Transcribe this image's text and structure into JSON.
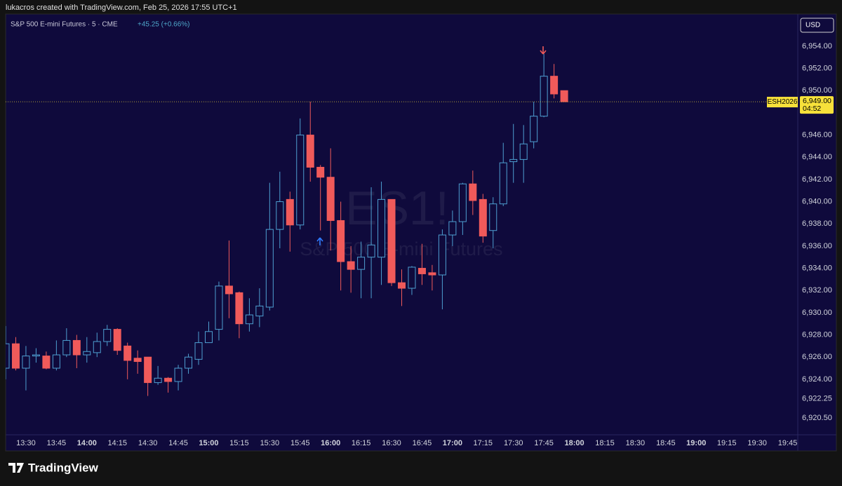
{
  "header": "lukacros created with TradingView.com, Feb 25, 2026 17:55 UTC+1",
  "footer": {
    "brand": "TradingView"
  },
  "chart_data": {
    "type": "candlestick",
    "legend": {
      "symbol": "S&P 500 E-mini Futures · 5 · CME",
      "change": "+45.25 (+0.66%)"
    },
    "watermark": {
      "ticker": "ES1!",
      "name": "S&P 500 E-mini Futures"
    },
    "currency": "USD",
    "x": [
      "13:20",
      "13:25",
      "13:30",
      "13:35",
      "13:40",
      "13:45",
      "13:50",
      "13:55",
      "14:00",
      "14:05",
      "14:10",
      "14:15",
      "14:20",
      "14:25",
      "14:30",
      "14:35",
      "14:40",
      "14:45",
      "14:50",
      "14:55",
      "15:00",
      "15:05",
      "15:10",
      "15:15",
      "15:20",
      "15:25",
      "15:30",
      "15:35",
      "15:40",
      "15:45",
      "15:50",
      "15:55",
      "16:00",
      "16:05",
      "16:10",
      "16:15",
      "16:20",
      "16:25",
      "16:30",
      "16:35",
      "16:40",
      "16:45",
      "16:50",
      "16:55",
      "17:00",
      "17:05",
      "17:10",
      "17:15",
      "17:20",
      "17:25",
      "17:30",
      "17:35",
      "17:40",
      "17:45",
      "17:50",
      "17:55"
    ],
    "open": [
      6925.0,
      6927.2,
      6925.0,
      6926.1,
      6926.1,
      6925.0,
      6926.2,
      6927.5,
      6926.2,
      6926.4,
      6927.4,
      6928.5,
      6927.0,
      6925.9,
      6926.0,
      6923.7,
      6924.1,
      6923.8,
      6925.0,
      6925.8,
      6927.3,
      6928.5,
      6932.4,
      6931.8,
      6929.0,
      6929.7,
      6930.5,
      6937.5,
      6940.2,
      6937.9,
      6946.0,
      6943.1,
      6942.2,
      6938.3,
      6934.6,
      6933.9,
      6935.0,
      6935.0,
      6940.2,
      6932.7,
      6932.2,
      6934.0,
      6933.6,
      6933.4,
      6937.0,
      6938.2,
      6941.6,
      6940.2,
      6937.4,
      6939.8,
      6943.6,
      6943.8,
      6945.4,
      6947.7,
      6951.3,
      6950.0
    ],
    "high": [
      6928.8,
      6927.8,
      6927.0,
      6926.8,
      6926.5,
      6927.5,
      6928.6,
      6928.0,
      6927.8,
      6928.2,
      6928.9,
      6928.6,
      6927.3,
      6926.6,
      6926.0,
      6925.2,
      6924.2,
      6925.3,
      6926.3,
      6928.3,
      6929.2,
      6932.8,
      6936.5,
      6931.9,
      6931.3,
      6932.2,
      6941.7,
      6942.7,
      6940.9,
      6947.5,
      6949.0,
      6943.3,
      6944.8,
      6940.0,
      6936.0,
      6936.4,
      6941.3,
      6941.8,
      6940.2,
      6933.9,
      6934.2,
      6936.2,
      6934.3,
      6937.5,
      6939.2,
      6941.7,
      6942.8,
      6940.7,
      6940.4,
      6945.3,
      6947.0,
      6946.9,
      6949.0,
      6953.3,
      6952.4,
      6950.0
    ],
    "low": [
      6924.0,
      6924.8,
      6923.0,
      6925.5,
      6924.9,
      6924.8,
      6926.0,
      6925.0,
      6925.5,
      6926.0,
      6927.0,
      6926.2,
      6924.0,
      6924.5,
      6922.5,
      6923.5,
      6922.8,
      6923.0,
      6924.5,
      6925.3,
      6927.3,
      6927.5,
      6929.5,
      6927.7,
      6928.3,
      6928.7,
      6930.2,
      6935.8,
      6935.5,
      6937.5,
      6941.8,
      6937.4,
      6935.6,
      6932.0,
      6931.8,
      6931.3,
      6931.3,
      6932.5,
      6932.4,
      6930.6,
      6931.6,
      6932.5,
      6932.0,
      6930.3,
      6936.0,
      6937.0,
      6938.8,
      6936.3,
      6935.8,
      6939.6,
      6941.7,
      6941.7,
      6944.8,
      6947.6,
      6949.3,
      6949.0
    ],
    "close": [
      6927.2,
      6925.0,
      6926.1,
      6926.2,
      6925.0,
      6926.2,
      6927.5,
      6926.2,
      6926.5,
      6927.4,
      6928.5,
      6926.6,
      6925.7,
      6925.6,
      6923.7,
      6924.1,
      6923.8,
      6925.0,
      6926.0,
      6927.3,
      6928.3,
      6932.4,
      6931.7,
      6929.0,
      6929.8,
      6930.6,
      6937.5,
      6940.0,
      6937.9,
      6946.0,
      6943.1,
      6942.2,
      6938.3,
      6934.6,
      6933.9,
      6935.0,
      6936.1,
      6940.2,
      6932.7,
      6932.2,
      6934.1,
      6933.5,
      6933.4,
      6937.0,
      6938.2,
      6941.6,
      6940.1,
      6936.9,
      6939.8,
      6943.5,
      6943.8,
      6945.2,
      6947.7,
      6951.3,
      6949.7,
      6949.0
    ],
    "up_color": "#4e9fd1",
    "down_color": "#f05a5a",
    "xlim": [
      "13:20",
      "19:50"
    ],
    "xticks": [
      "13:30",
      "13:45",
      "14:00",
      "14:15",
      "14:30",
      "14:45",
      "15:00",
      "15:15",
      "15:30",
      "15:45",
      "16:00",
      "16:15",
      "16:30",
      "16:45",
      "17:00",
      "17:15",
      "17:30",
      "17:45",
      "18:00",
      "18:15",
      "18:30",
      "18:45",
      "19:00",
      "19:15",
      "19:30",
      "19:45"
    ],
    "ylim": [
      6919,
      6956.9
    ],
    "yticks": [
      {
        "value": 6954,
        "label": "6,954.00"
      },
      {
        "value": 6952,
        "label": "6,952.00"
      },
      {
        "value": 6950,
        "label": "6,950.00"
      },
      {
        "value": 6946,
        "label": "6,946.00"
      },
      {
        "value": 6944,
        "label": "6,944.00"
      },
      {
        "value": 6942,
        "label": "6,942.00"
      },
      {
        "value": 6940,
        "label": "6,940.00"
      },
      {
        "value": 6938,
        "label": "6,938.00"
      },
      {
        "value": 6936,
        "label": "6,936.00"
      },
      {
        "value": 6934,
        "label": "6,934.00"
      },
      {
        "value": 6932,
        "label": "6,932.00"
      },
      {
        "value": 6930,
        "label": "6,930.00"
      },
      {
        "value": 6928,
        "label": "6,928.00"
      },
      {
        "value": 6926,
        "label": "6,926.00"
      },
      {
        "value": 6924,
        "label": "6,924.00"
      },
      {
        "value": 6922.25,
        "label": "6,922.25"
      },
      {
        "value": 6920.5,
        "label": "6,920.50"
      }
    ],
    "grid": false,
    "last_price": {
      "value": 6949,
      "label": "6,949.00",
      "symbol": "ESH2026",
      "countdown": "04:52",
      "color": "#f7e13a"
    }
  }
}
